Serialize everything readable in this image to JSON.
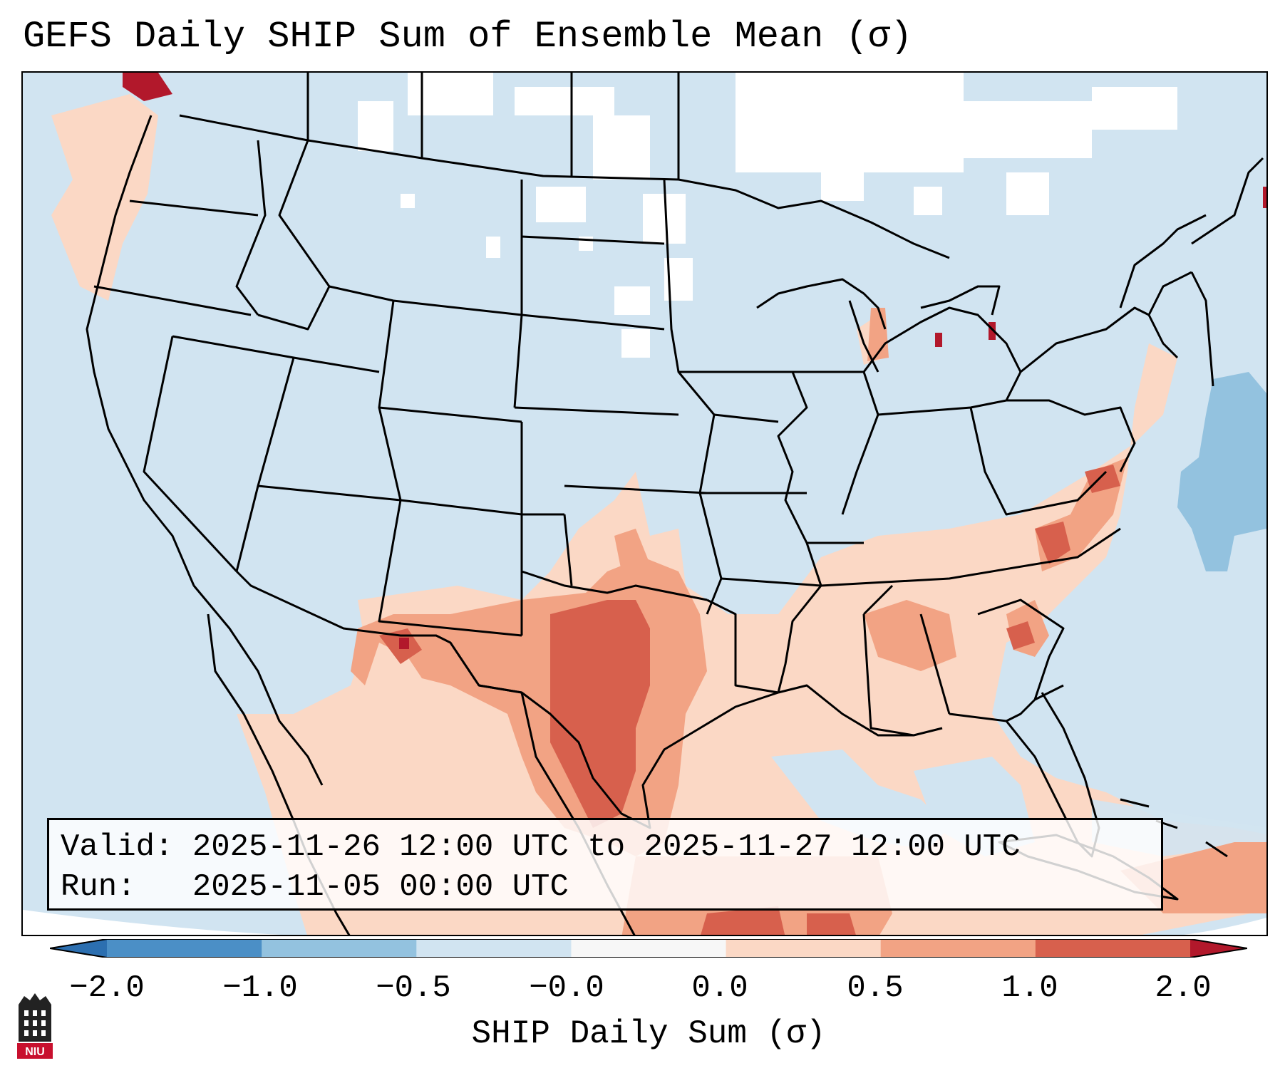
{
  "title": "GEFS Daily SHIP Sum of Ensemble Mean (σ)",
  "info": {
    "valid_line": "Valid: 2025-11-26 12:00 UTC to 2025-11-27 12:00 UTC",
    "run_line": "Run:   2025-11-05 00:00 UTC"
  },
  "colorbar": {
    "label": "SHIP Daily Sum (σ)",
    "ticks": [
      "−2.0",
      "−1.0",
      "−0.5",
      "−0.0",
      "0.0",
      "0.5",
      "1.0",
      "2.0"
    ],
    "colors": [
      "#4b8fc6",
      "#93c2df",
      "#d1e4f1",
      "#f7f7f7",
      "#fbd8c5",
      "#f2a384",
      "#d7604d"
    ],
    "under_color": "#2c6fb0",
    "over_color": "#b2182b"
  },
  "logo": {
    "text": "NIU"
  },
  "map": {
    "base_color": "#d1e4f1",
    "ocean_color": "#d1e4f1",
    "regions": [
      {
        "name": "south-central-us",
        "level": "0.0 to 0.5"
      },
      {
        "name": "texas-core",
        "level": "1.0 to 2.0"
      },
      {
        "name": "carolinas",
        "level": "0.5 to 1.0"
      },
      {
        "name": "atlantic-east",
        "level": "-1.0 to -0.5"
      }
    ]
  }
}
